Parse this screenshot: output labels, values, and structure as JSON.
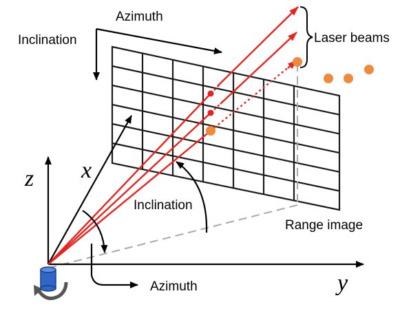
{
  "labels": {
    "azimuth_top": "Azimuth",
    "inclination_top": "Inclination",
    "laser_beams": "Laser beams",
    "inclination_mid": "Inclination",
    "range_image": "Range image",
    "azimuth_bottom": "Azimuth",
    "axis_x": "x",
    "axis_y": "y",
    "axis_z": "z"
  },
  "colors": {
    "beam": "#e8221c",
    "point": "#ed8a3c",
    "grid": "#1a1a1a",
    "sensor": "#2f66c8"
  }
}
